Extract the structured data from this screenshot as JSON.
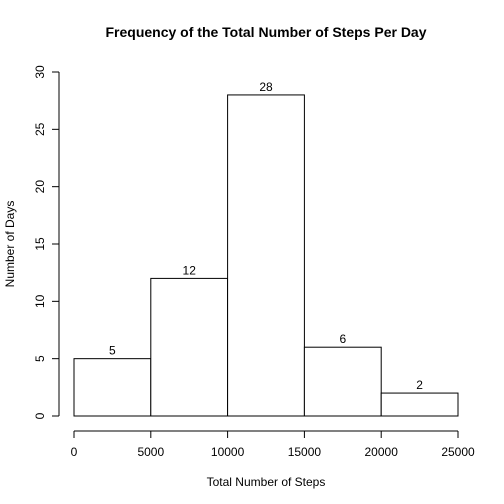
{
  "chart_data": {
    "type": "bar",
    "title": "Frequency of the Total Number of Steps Per Day",
    "xlabel": "Total Number of Steps",
    "ylabel": "Number of Days",
    "bins": [
      {
        "from": 0,
        "to": 5000,
        "count": 5
      },
      {
        "from": 5000,
        "to": 10000,
        "count": 12
      },
      {
        "from": 10000,
        "to": 15000,
        "count": 28
      },
      {
        "from": 15000,
        "to": 20000,
        "count": 6
      },
      {
        "from": 20000,
        "to": 25000,
        "count": 2
      }
    ],
    "values": [
      5,
      12,
      28,
      6,
      2
    ],
    "data_labels": [
      "5",
      "12",
      "28",
      "6",
      "2"
    ],
    "xlim": [
      0,
      25000
    ],
    "ylim": [
      0,
      30
    ],
    "x_ticks": [
      0,
      5000,
      10000,
      15000,
      20000,
      25000
    ],
    "x_tick_labels": [
      "0",
      "5000",
      "10000",
      "15000",
      "20000",
      "25000"
    ],
    "y_ticks": [
      0,
      5,
      10,
      15,
      20,
      25,
      30
    ],
    "y_tick_labels": [
      "0",
      "5",
      "10",
      "15",
      "20",
      "25",
      "30"
    ],
    "grid": false,
    "legend": "none",
    "colors": {
      "bar_fill": "#ffffff",
      "bar_stroke": "#000000",
      "axis": "#000000",
      "text": "#000000"
    }
  }
}
